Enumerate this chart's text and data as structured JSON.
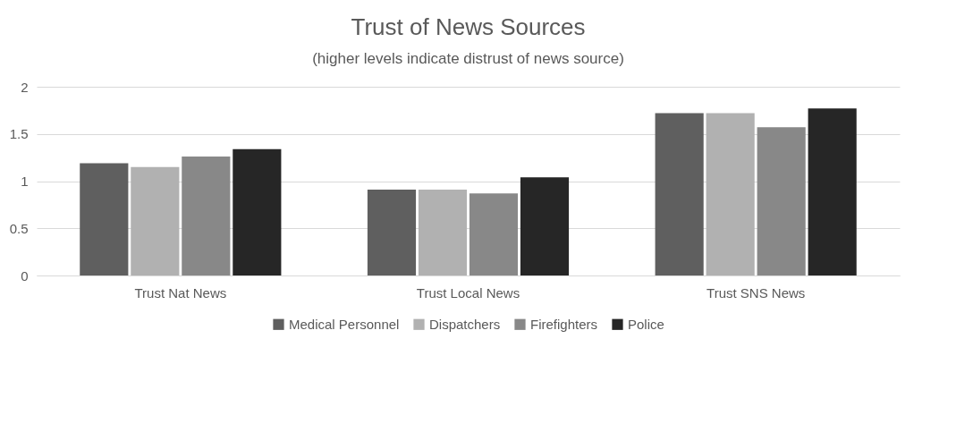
{
  "chart_data": {
    "type": "bar",
    "title": "Trust of News Sources",
    "subtitle": "(higher levels indicate distrust of news source)",
    "categories": [
      "Trust Nat News",
      "Trust Local News",
      "Trust SNS News"
    ],
    "series": [
      {
        "name": "Medical Personnel",
        "color": "#5f5f5f",
        "values": [
          1.19,
          0.91,
          1.72
        ]
      },
      {
        "name": "Dispatchers",
        "color": "#b1b1b1",
        "values": [
          1.15,
          0.91,
          1.72
        ]
      },
      {
        "name": "Firefighters",
        "color": "#888888",
        "values": [
          1.26,
          0.87,
          1.57
        ]
      },
      {
        "name": "Police",
        "color": "#262626",
        "values": [
          1.34,
          1.04,
          1.77
        ]
      }
    ],
    "ylim": [
      0,
      2
    ],
    "yticks": [
      0,
      0.5,
      1,
      1.5,
      2
    ],
    "grid": "y",
    "legend": "bottom"
  }
}
